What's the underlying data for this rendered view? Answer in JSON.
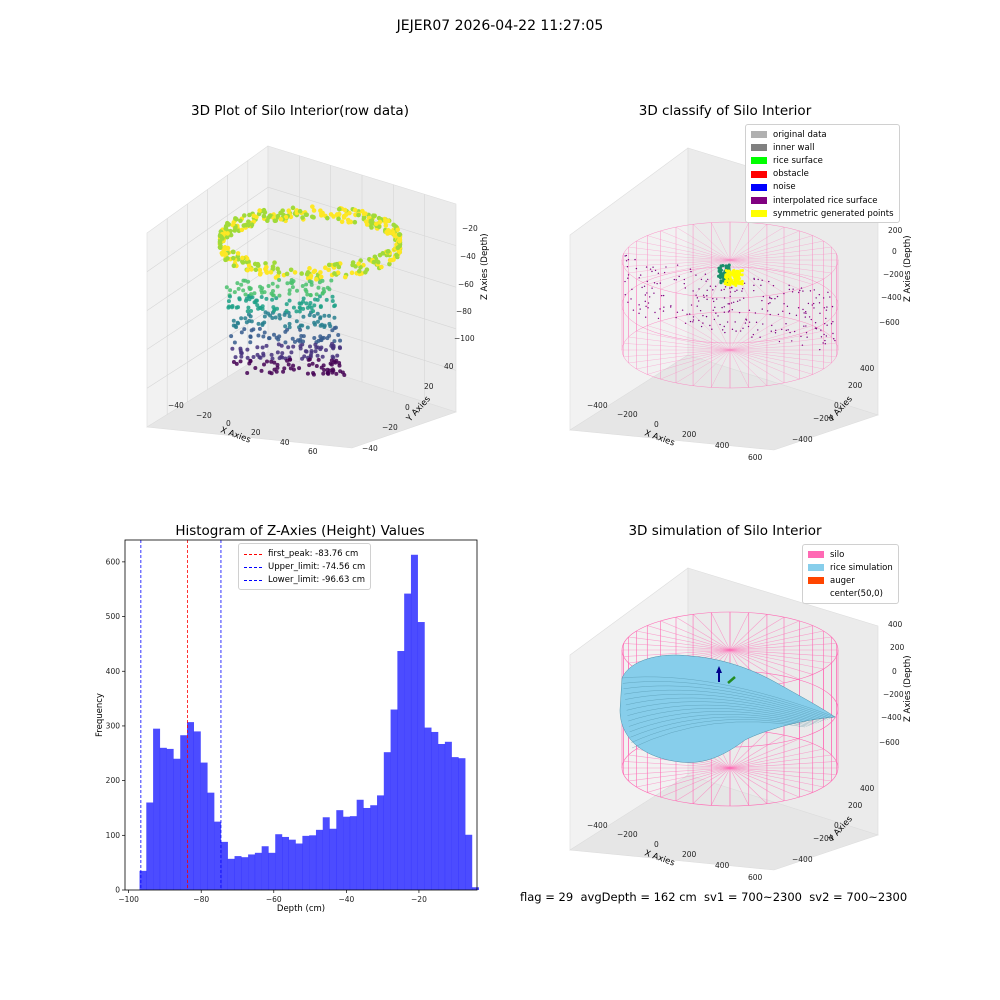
{
  "suptitle": "JEJER07 2026-04-22 11:27:05",
  "footer": "flag = 29  avgDepth = 162 cm  sv1 = 700~2300  sv2 = 700~2300",
  "chart_data": [
    {
      "type": "scatter",
      "title": "3D Plot of Silo Interior(row data)",
      "xlabel": "X Axies",
      "ylabel": "Y Axies",
      "zlabel": "Z Axies (Depth)",
      "x_ticks": [
        "−40",
        "−20",
        "0",
        "20",
        "40",
        "60"
      ],
      "y_ticks": [
        "−40",
        "−20",
        "0",
        "20",
        "40"
      ],
      "z_ticks": [
        "−20",
        "−40",
        "−60",
        "−80",
        "−100"
      ],
      "xlim": [
        -50,
        70
      ],
      "ylim": [
        -45,
        50
      ],
      "zlim": [
        -105,
        -10
      ],
      "colormap": "viridis",
      "description_points": "ring of points near z=-20 with a column of points descending to about z=-100"
    },
    {
      "type": "scatter",
      "title": "3D classify of Silo Interior",
      "xlabel": "X Axies",
      "ylabel": "Y Axies",
      "zlabel": "Z Axies (Depth)",
      "x_ticks": [
        "−400",
        "−200",
        "0",
        "200",
        "400",
        "600"
      ],
      "y_ticks": [
        "−400",
        "−200",
        "0",
        "200",
        "400"
      ],
      "z_ticks": [
        "200",
        "0",
        "−200",
        "−400",
        "−600"
      ],
      "legend": [
        {
          "label": "original data",
          "color": "#b0b0b0"
        },
        {
          "label": "inner wall",
          "color": "#808080"
        },
        {
          "label": "rice surface",
          "color": "#00ff00"
        },
        {
          "label": "obstacle",
          "color": "#ff0000"
        },
        {
          "label": "noise",
          "color": "#0000ff"
        },
        {
          "label": "interpolated rice surface",
          "color": "#800080"
        },
        {
          "label": "symmetric generated points",
          "color": "#ffff00"
        }
      ],
      "wireframe_color": "#ff69b4"
    },
    {
      "type": "bar",
      "title": "Histogram of Z-Axies (Height) Values",
      "xlabel": "Depth (cm)",
      "ylabel": "Frequency",
      "xlim": [
        -101,
        -4
      ],
      "ylim": [
        0,
        640
      ],
      "x_ticks": [
        -100,
        -80,
        -60,
        -40,
        -20
      ],
      "y_ticks": [
        0,
        100,
        200,
        300,
        400,
        500,
        600
      ],
      "bin_start": -97.0,
      "bin_width": 1.87,
      "values": [
        35,
        160,
        295,
        260,
        258,
        240,
        283,
        307,
        290,
        233,
        178,
        125,
        88,
        57,
        62,
        60,
        65,
        68,
        80,
        68,
        102,
        97,
        92,
        85,
        99,
        100,
        110,
        133,
        112,
        146,
        134,
        135,
        165,
        150,
        155,
        173,
        252,
        330,
        437,
        542,
        613,
        490,
        297,
        289,
        267,
        271,
        243,
        241,
        101,
        5
      ],
      "bar_color": "#0000ff",
      "bar_alpha": 0.7,
      "vlines": [
        {
          "label": "first_peak: -83.76 cm",
          "x": -83.76,
          "color": "#ff0000"
        },
        {
          "label": "Upper_limit: -74.56 cm",
          "x": -74.56,
          "color": "#0000ff"
        },
        {
          "label": "Lower_limit: -96.63 cm",
          "x": -96.63,
          "color": "#0000ff"
        }
      ]
    },
    {
      "type": "surface",
      "title": "3D simulation of Silo Interior",
      "xlabel": "X Axies",
      "ylabel": "Y Axies",
      "zlabel": "Z Axies (Depth)",
      "x_ticks": [
        "−400",
        "−200",
        "0",
        "200",
        "400",
        "600"
      ],
      "y_ticks": [
        "−400",
        "−200",
        "0",
        "200",
        "400"
      ],
      "z_ticks": [
        "400",
        "200",
        "0",
        "−200",
        "−400",
        "−600"
      ],
      "legend": [
        {
          "label": "silo",
          "color": "#ff69b4"
        },
        {
          "label": "rice simulation",
          "color": "#87ceeb"
        },
        {
          "label": "auger",
          "color": "#ff4500"
        },
        {
          "label": "center(50,0)",
          "color": ""
        }
      ]
    }
  ]
}
